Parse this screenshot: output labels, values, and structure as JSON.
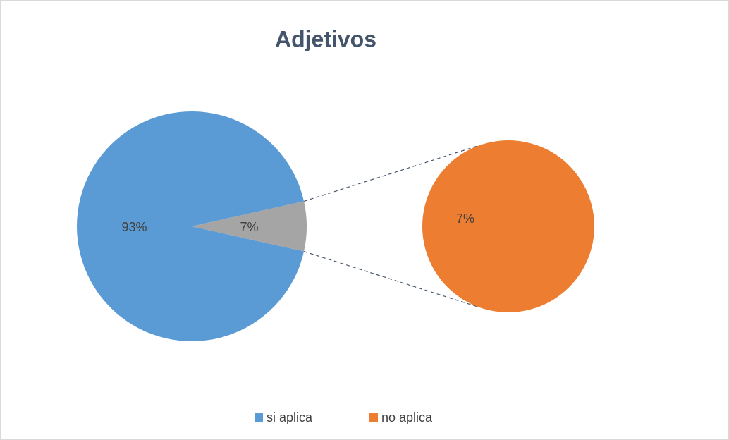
{
  "chart_data": {
    "type": "pie_of_pie",
    "title": "Adjetivos",
    "categories": [
      "si aplica",
      "no aplica"
    ],
    "values": [
      93,
      7
    ],
    "value_labels": [
      "93%",
      "7%"
    ],
    "colors": [
      "#5b9bd5",
      "#ed7d31"
    ],
    "other_color": "#a5a5a5",
    "legend": "bottom"
  }
}
